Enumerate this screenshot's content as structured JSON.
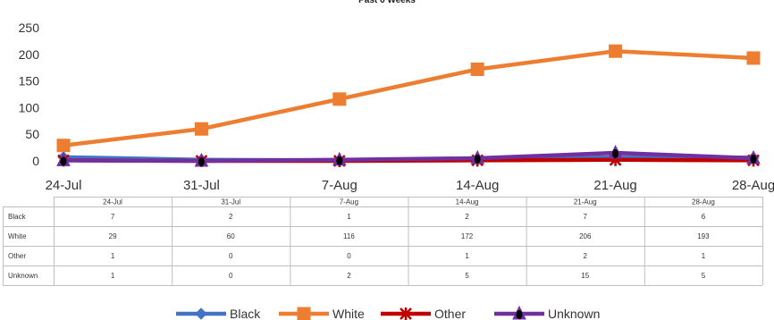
{
  "chart_data": {
    "type": "line",
    "title": "Past 6 Weeks",
    "categories": [
      "24-Jul",
      "31-Jul",
      "7-Aug",
      "14-Aug",
      "21-Aug",
      "28-Aug"
    ],
    "ylim": [
      0,
      250
    ],
    "yticks": [
      0,
      50,
      100,
      150,
      200,
      250
    ],
    "grid": false,
    "legend_position": "bottom",
    "series": [
      {
        "name": "Black",
        "values": [
          7,
          2,
          1,
          2,
          7,
          6
        ],
        "color": "#4472C4",
        "marker": "diamond"
      },
      {
        "name": "White",
        "values": [
          29,
          60,
          116,
          172,
          206,
          193
        ],
        "color": "#ED7D31",
        "marker": "square"
      },
      {
        "name": "Other",
        "values": [
          1,
          0,
          0,
          1,
          2,
          1
        ],
        "color": "#C00000",
        "marker": "star"
      },
      {
        "name": "Unknown",
        "values": [
          1,
          0,
          2,
          5,
          15,
          5
        ],
        "color": "#7030A0",
        "marker": "triangle"
      }
    ],
    "data_table": true
  }
}
